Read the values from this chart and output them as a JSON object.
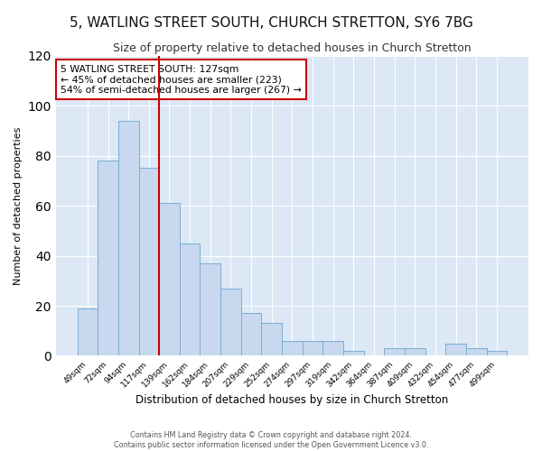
{
  "title": "5, WATLING STREET SOUTH, CHURCH STRETTON, SY6 7BG",
  "subtitle": "Size of property relative to detached houses in Church Stretton",
  "xlabel": "Distribution of detached houses by size in Church Stretton",
  "ylabel": "Number of detached properties",
  "categories": [
    "49sqm",
    "72sqm",
    "94sqm",
    "117sqm",
    "139sqm",
    "162sqm",
    "184sqm",
    "207sqm",
    "229sqm",
    "252sqm",
    "274sqm",
    "297sqm",
    "319sqm",
    "342sqm",
    "364sqm",
    "387sqm",
    "409sqm",
    "432sqm",
    "454sqm",
    "477sqm",
    "499sqm"
  ],
  "values": [
    19,
    78,
    94,
    75,
    61,
    45,
    37,
    27,
    17,
    13,
    6,
    6,
    6,
    2,
    0,
    3,
    3,
    0,
    5,
    3,
    2
  ],
  "bar_color": "#c8d8ee",
  "bar_edge_color": "#7aadd4",
  "vline_x": 3.5,
  "vline_color": "#cc0000",
  "annotation_text": "5 WATLING STREET SOUTH: 127sqm\n← 45% of detached houses are smaller (223)\n54% of semi-detached houses are larger (267) →",
  "annotation_box_color": "#ffffff",
  "annotation_box_edge_color": "#cc0000",
  "ylim": [
    0,
    120
  ],
  "yticks": [
    0,
    20,
    40,
    60,
    80,
    100,
    120
  ],
  "footer_text": "Contains HM Land Registry data © Crown copyright and database right 2024.\nContains public sector information licensed under the Open Government Licence v3.0.",
  "bg_color": "#ffffff",
  "plot_bg_color": "#dce8f5",
  "title_fontsize": 11,
  "subtitle_fontsize": 9
}
